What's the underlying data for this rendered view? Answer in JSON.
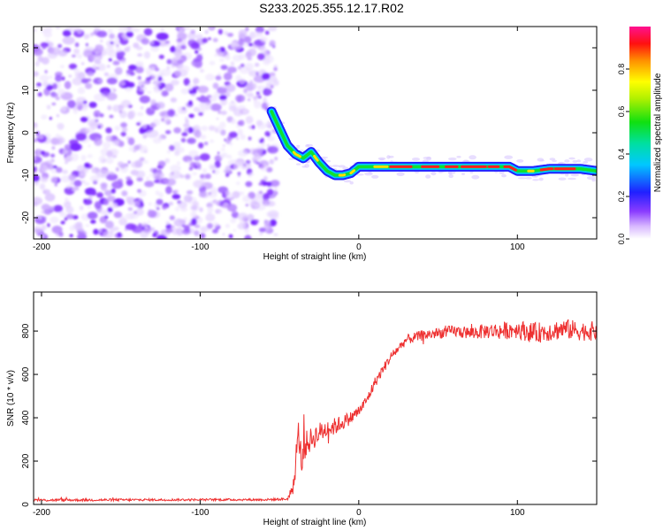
{
  "title": "S233.2025.355.12.17.R02",
  "chart_data": [
    {
      "type": "heatmap",
      "xlabel": "Height of straight line (km)",
      "ylabel": "Frequency (Hz)",
      "xlim": [
        -205,
        150
      ],
      "ylim": [
        -25,
        25
      ],
      "x_ticks": [
        -200,
        -100,
        0,
        100
      ],
      "x_tick_labels": [
        "-200",
        "-100",
        "0",
        "100"
      ],
      "y_ticks": [
        -20,
        -10,
        0,
        10,
        20
      ],
      "y_tick_labels": [
        "-20",
        "-10",
        "0",
        "10",
        "20"
      ],
      "noise_region_x": [
        -205,
        -52
      ],
      "ridge": {
        "x": [
          -55,
          -50,
          -45,
          -40,
          -35,
          -30,
          -25,
          -20,
          -15,
          -10,
          -5,
          0,
          10,
          20,
          40,
          60,
          80,
          90,
          95,
          100,
          110,
          120,
          130,
          140,
          150
        ],
        "y": [
          5,
          1,
          -3,
          -5,
          -6,
          -4.5,
          -7,
          -9,
          -10,
          -10,
          -9.5,
          -8,
          -8,
          -8,
          -8,
          -8,
          -8,
          -8,
          -8,
          -9,
          -9,
          -8.5,
          -8.5,
          -8.5,
          -9
        ]
      },
      "colorbar": {
        "label": "Normalized spectral amplitude",
        "range": [
          0,
          1
        ],
        "ticks": [
          0.0,
          0.2,
          0.4,
          0.6,
          0.8
        ],
        "tick_labels": [
          "0.0",
          "0.2",
          "0.4",
          "0.6",
          "0.8"
        ]
      }
    },
    {
      "type": "line",
      "xlabel": "Height of straight line (km)",
      "ylabel": "SNR (10 * v/v)",
      "xlim": [
        -205,
        150
      ],
      "ylim": [
        0,
        980
      ],
      "x_ticks": [
        -200,
        -100,
        0,
        100
      ],
      "x_tick_labels": [
        "-200",
        "-100",
        "0",
        "100"
      ],
      "y_ticks": [
        0,
        200,
        400,
        600,
        800
      ],
      "y_tick_labels": [
        "0",
        "200",
        "400",
        "600",
        "800"
      ],
      "series": [
        {
          "name": "SNR",
          "color": "#ee3030",
          "x": [
            -205,
            -100,
            -60,
            -45,
            -41,
            -38,
            -36,
            -33,
            -30,
            -25,
            -20,
            -15,
            -10,
            -5,
            0,
            5,
            10,
            15,
            20,
            25,
            30,
            40,
            50,
            60,
            70,
            80,
            90,
            100,
            110,
            120,
            130,
            140,
            150
          ],
          "y": [
            20,
            22,
            22,
            25,
            80,
            330,
            200,
            280,
            300,
            330,
            350,
            360,
            380,
            400,
            430,
            480,
            560,
            620,
            680,
            720,
            760,
            780,
            790,
            800,
            790,
            800,
            800,
            810,
            790,
            800,
            810,
            800,
            800
          ],
          "jitter": [
            12,
            10,
            10,
            12,
            60,
            130,
            120,
            120,
            110,
            100,
            90,
            80,
            70,
            60,
            55,
            50,
            50,
            45,
            45,
            45,
            45,
            50,
            50,
            55,
            60,
            70,
            80,
            85,
            95,
            95,
            95,
            90,
            90
          ]
        }
      ]
    }
  ]
}
